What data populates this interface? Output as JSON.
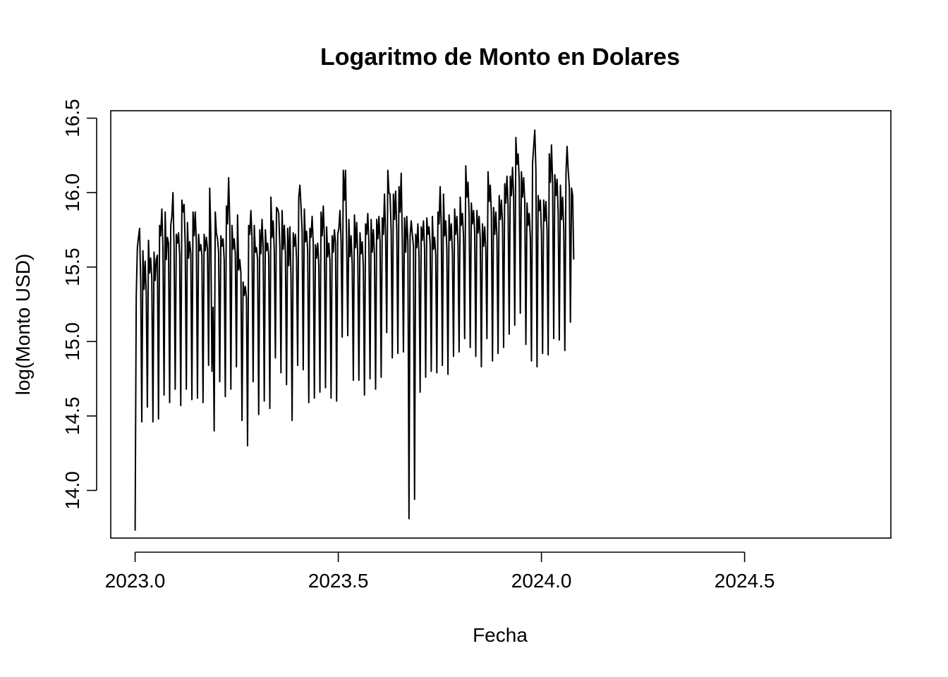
{
  "chart_data": {
    "type": "line",
    "title": "Logaritmo de Monto en Dolares",
    "xlabel": "Fecha",
    "ylabel": "log(Monto USD)",
    "xlim": [
      2022.94,
      2024.86
    ],
    "ylim": [
      13.68,
      16.55
    ],
    "xticks": [
      2023.0,
      2023.5,
      2024.0,
      2024.5
    ],
    "xtick_labels": [
      "2023.0",
      "2023.5",
      "2024.0",
      "2024.5"
    ],
    "yticks": [
      14.0,
      14.5,
      15.0,
      15.5,
      16.0,
      16.5
    ],
    "ytick_labels": [
      "14.0",
      "14.5",
      "15.0",
      "15.5",
      "16.0",
      "16.5"
    ],
    "grid": false,
    "legend": "none",
    "line_color": "#000000",
    "series": [
      {
        "x_start": 2023.0,
        "x_step": 0.00274,
        "values": [
          13.73,
          15.3,
          15.63,
          15.7,
          15.76,
          15.4,
          14.46,
          15.61,
          15.35,
          15.54,
          15.32,
          14.56,
          15.68,
          15.46,
          15.56,
          15.42,
          14.46,
          15.6,
          15.41,
          15.55,
          15.58,
          14.48,
          15.78,
          15.71,
          15.89,
          15.63,
          14.64,
          15.87,
          15.55,
          15.7,
          15.66,
          14.59,
          15.78,
          15.84,
          16.0,
          15.62,
          14.68,
          15.72,
          15.66,
          15.73,
          15.58,
          14.57,
          15.95,
          15.87,
          15.92,
          15.64,
          14.68,
          15.8,
          15.56,
          15.67,
          15.59,
          14.61,
          15.87,
          15.71,
          15.87,
          15.67,
          14.62,
          15.72,
          15.61,
          15.65,
          15.58,
          14.59,
          15.72,
          15.61,
          15.7,
          15.62,
          14.84,
          16.03,
          15.72,
          14.8,
          15.23,
          14.4,
          15.87,
          15.73,
          15.69,
          15.6,
          14.73,
          15.71,
          15.64,
          15.69,
          15.55,
          14.63,
          15.91,
          15.79,
          16.1,
          15.81,
          14.68,
          15.78,
          15.62,
          15.69,
          15.59,
          14.83,
          15.85,
          15.48,
          15.55,
          15.46,
          14.47,
          15.4,
          15.31,
          15.37,
          15.29,
          14.3,
          15.78,
          15.72,
          15.88,
          15.69,
          14.73,
          15.78,
          15.6,
          15.63,
          15.55,
          14.51,
          15.75,
          15.59,
          15.82,
          15.64,
          14.6,
          15.75,
          15.61,
          15.66,
          15.58,
          14.55,
          15.97,
          15.7,
          15.81,
          15.61,
          14.89,
          15.9,
          15.89,
          15.86,
          15.63,
          14.79,
          15.88,
          15.62,
          15.78,
          15.59,
          14.71,
          15.76,
          15.51,
          15.77,
          15.44,
          14.47,
          15.73,
          15.64,
          15.72,
          15.56,
          14.84,
          15.97,
          16.05,
          15.91,
          15.74,
          14.81,
          15.89,
          15.67,
          15.74,
          15.61,
          14.59,
          15.76,
          15.7,
          15.84,
          15.66,
          14.62,
          15.65,
          15.56,
          15.66,
          15.51,
          14.66,
          15.87,
          15.71,
          15.91,
          15.7,
          14.69,
          15.77,
          15.57,
          15.66,
          15.54,
          14.62,
          15.71,
          15.6,
          15.75,
          15.66,
          14.6,
          15.72,
          15.76,
          15.88,
          15.68,
          15.03,
          16.15,
          15.95,
          16.15,
          15.67,
          15.04,
          15.82,
          15.57,
          15.71,
          15.52,
          14.74,
          15.85,
          15.63,
          15.8,
          15.57,
          14.74,
          15.73,
          15.59,
          15.67,
          15.5,
          14.64,
          15.79,
          15.72,
          15.86,
          15.66,
          14.75,
          15.82,
          15.6,
          15.75,
          15.58,
          14.68,
          15.82,
          15.69,
          15.84,
          15.67,
          14.76,
          15.83,
          15.72,
          15.99,
          15.7,
          15.06,
          16.15,
          16.0,
          15.99,
          15.74,
          14.89,
          15.99,
          15.82,
          16.01,
          15.75,
          14.92,
          16.04,
          15.87,
          16.13,
          15.67,
          14.93,
          15.83,
          15.6,
          15.84,
          15.67,
          13.81,
          15.71,
          15.81,
          15.72,
          15.64,
          13.94,
          15.72,
          15.63,
          15.79,
          15.58,
          14.66,
          15.77,
          15.68,
          15.81,
          15.62,
          14.76,
          15.83,
          15.72,
          15.77,
          15.65,
          14.8,
          15.84,
          15.62,
          15.7,
          15.58,
          14.79,
          15.87,
          15.79,
          16.04,
          15.77,
          14.84,
          15.99,
          15.71,
          15.81,
          15.62,
          14.78,
          15.85,
          15.68,
          15.79,
          15.6,
          14.9,
          15.89,
          15.72,
          15.84,
          15.66,
          14.93,
          15.97,
          15.78,
          15.86,
          15.7,
          15.02,
          16.18,
          15.97,
          16.07,
          15.85,
          14.96,
          15.93,
          15.79,
          15.88,
          15.74,
          14.9,
          15.88,
          15.73,
          15.84,
          15.69,
          14.83,
          15.79,
          15.64,
          15.77,
          15.61,
          15.02,
          16.14,
          15.94,
          16.05,
          15.86,
          14.87,
          15.9,
          15.72,
          15.87,
          15.7,
          14.92,
          15.98,
          15.82,
          15.95,
          15.79,
          14.96,
          16.06,
          15.93,
          16.11,
          15.91,
          15.05,
          16.11,
          15.98,
          16.17,
          15.97,
          15.11,
          16.37,
          16.19,
          16.26,
          16.09,
          15.19,
          16.14,
          15.97,
          16.1,
          15.94,
          14.98,
          15.93,
          15.78,
          15.86,
          15.7,
          14.87,
          16.2,
          16.31,
          16.42,
          16.15,
          14.83,
          15.98,
          15.88,
          15.95,
          15.72,
          14.92,
          15.95,
          15.81,
          15.94,
          15.75,
          14.91,
          16.26,
          16.07,
          16.32,
          16.06,
          15.02,
          16.12,
          15.98,
          16.09,
          15.86,
          15.01,
          16.05,
          15.82,
          15.97,
          15.76,
          14.94,
          16.13,
          16.31,
          16.15,
          16.04,
          15.13,
          16.03,
          15.98,
          15.55
        ]
      }
    ]
  }
}
